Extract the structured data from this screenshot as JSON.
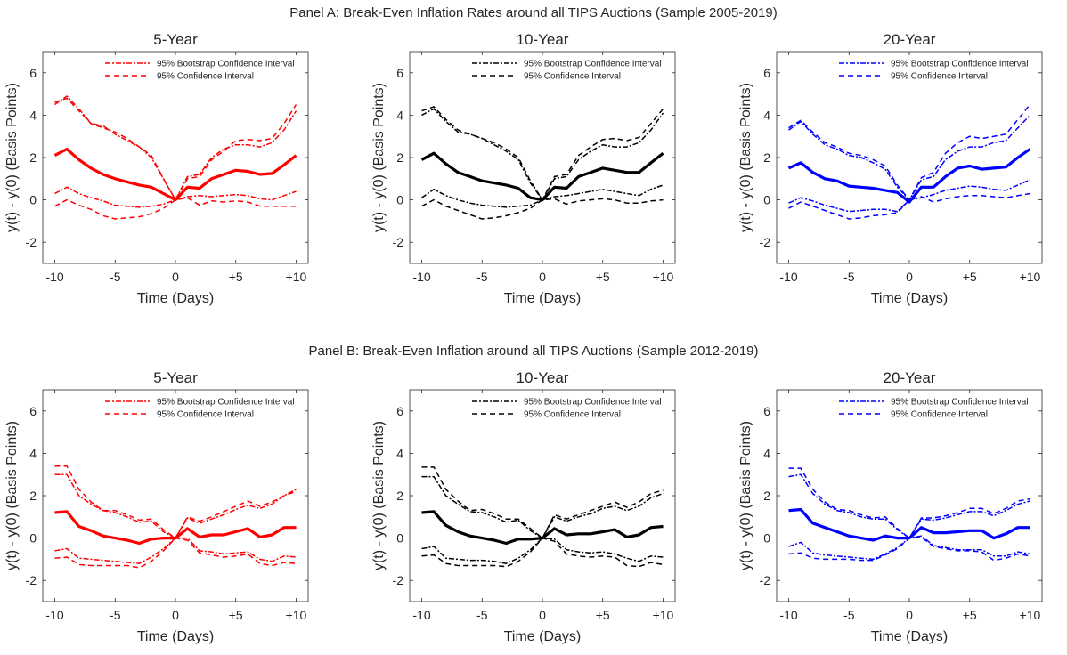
{
  "panel_a": {
    "title": "Panel A: Break-Even Inflation Rates around all TIPS Auctions (Sample 2005-2019)"
  },
  "panel_b": {
    "title": "Panel B: Break-Even Inflation around all TIPS Auctions (Sample 2012-2019)"
  },
  "chart_data": [
    {
      "type": "line",
      "panel": "A",
      "title": "5-Year",
      "color": "#ff0000",
      "xlabel": "Time (Days)",
      "ylabel": "y(t) - y(0) (Basis Points)",
      "xlim": [
        -11,
        11
      ],
      "ylim": [
        -3,
        7
      ],
      "xticks": [
        "-10",
        "-5",
        "0",
        "+5",
        "+10"
      ],
      "yticks": [
        "-2",
        "0",
        "2",
        "4",
        "6"
      ],
      "grid": false,
      "legend": "top-right",
      "x": [
        -10,
        -9,
        -8,
        -7,
        -6,
        -5,
        -4,
        -3,
        -2,
        -1,
        0,
        1,
        2,
        3,
        4,
        5,
        6,
        7,
        8,
        9,
        10
      ],
      "series": [
        {
          "role": "mean",
          "values": [
            2.1,
            2.4,
            1.9,
            1.5,
            1.2,
            1.0,
            0.85,
            0.7,
            0.6,
            0.3,
            0.0,
            0.6,
            0.55,
            1.0,
            1.2,
            1.4,
            1.35,
            1.2,
            1.25,
            1.65,
            2.1
          ]
        },
        {
          "role": "bootstrap",
          "name": "95% Bootstrap Confidence Interval",
          "values": [
            4.5,
            4.9,
            4.3,
            3.6,
            3.5,
            3.1,
            2.8,
            2.5,
            2.0,
            1.0,
            0.0,
            1.1,
            1.2,
            2.0,
            2.4,
            2.6,
            2.6,
            2.5,
            2.7,
            3.3,
            4.2
          ]
        },
        {
          "role": "bootstrap",
          "values": [
            0.3,
            0.6,
            0.3,
            0.1,
            -0.05,
            -0.25,
            -0.3,
            -0.35,
            -0.3,
            -0.2,
            0.0,
            0.15,
            0.2,
            0.15,
            0.2,
            0.25,
            0.2,
            0.05,
            0.0,
            0.2,
            0.4
          ]
        },
        {
          "role": "ci",
          "name": "95% Confidence Interval",
          "values": [
            4.6,
            4.8,
            4.2,
            3.6,
            3.4,
            3.2,
            2.9,
            2.5,
            2.1,
            1.0,
            0.0,
            1.0,
            1.1,
            1.9,
            2.3,
            2.8,
            2.85,
            2.8,
            2.9,
            3.6,
            4.5
          ]
        },
        {
          "role": "ci",
          "values": [
            -0.3,
            0.0,
            -0.25,
            -0.45,
            -0.75,
            -0.9,
            -0.85,
            -0.8,
            -0.65,
            -0.4,
            0.0,
            0.1,
            -0.25,
            -0.05,
            -0.1,
            -0.05,
            -0.1,
            -0.3,
            -0.3,
            -0.3,
            -0.3
          ]
        }
      ]
    },
    {
      "type": "line",
      "panel": "A",
      "title": "10-Year",
      "color": "#000000",
      "xlabel": "Time (Days)",
      "ylabel": "y(t) - y(0) (Basis Points)",
      "xlim": [
        -11,
        11
      ],
      "ylim": [
        -3,
        7
      ],
      "xticks": [
        "-10",
        "-5",
        "0",
        "+5",
        "+10"
      ],
      "yticks": [
        "-2",
        "0",
        "2",
        "4",
        "6"
      ],
      "grid": false,
      "legend": "top-right",
      "x": [
        -10,
        -9,
        -8,
        -7,
        -6,
        -5,
        -4,
        -3,
        -2,
        -1,
        0,
        1,
        2,
        3,
        4,
        5,
        6,
        7,
        8,
        9,
        10
      ],
      "series": [
        {
          "role": "mean",
          "values": [
            1.9,
            2.2,
            1.7,
            1.3,
            1.1,
            0.9,
            0.8,
            0.7,
            0.55,
            0.1,
            0.0,
            0.6,
            0.55,
            1.1,
            1.3,
            1.5,
            1.4,
            1.3,
            1.3,
            1.75,
            2.2
          ]
        },
        {
          "role": "bootstrap",
          "name": "95% Bootstrap Confidence Interval",
          "values": [
            4.0,
            4.3,
            3.7,
            3.2,
            3.1,
            2.9,
            2.6,
            2.3,
            1.9,
            0.8,
            0.0,
            1.0,
            1.1,
            1.9,
            2.3,
            2.6,
            2.5,
            2.5,
            2.7,
            3.3,
            4.1
          ]
        },
        {
          "role": "bootstrap",
          "values": [
            0.1,
            0.5,
            0.2,
            0.0,
            -0.15,
            -0.25,
            -0.3,
            -0.35,
            -0.3,
            -0.25,
            0.0,
            0.15,
            0.2,
            0.3,
            0.4,
            0.5,
            0.4,
            0.3,
            0.2,
            0.5,
            0.7
          ]
        },
        {
          "role": "ci",
          "name": "95% Confidence Interval",
          "values": [
            4.2,
            4.4,
            3.8,
            3.3,
            3.1,
            2.9,
            2.7,
            2.4,
            2.0,
            0.9,
            0.0,
            1.1,
            1.2,
            2.1,
            2.5,
            2.85,
            2.9,
            2.8,
            2.95,
            3.6,
            4.3
          ]
        },
        {
          "role": "ci",
          "values": [
            -0.3,
            0.0,
            -0.3,
            -0.5,
            -0.7,
            -0.9,
            -0.85,
            -0.75,
            -0.6,
            -0.4,
            0.0,
            0.05,
            -0.2,
            -0.05,
            0.0,
            0.05,
            0.0,
            -0.15,
            -0.15,
            -0.05,
            0.0
          ]
        }
      ]
    },
    {
      "type": "line",
      "panel": "A",
      "title": "20-Year",
      "color": "#0000ff",
      "xlabel": "Time (Days)",
      "ylabel": "y(t) - y(0) (Basis Points)",
      "xlim": [
        -11,
        11
      ],
      "ylim": [
        -3,
        7
      ],
      "xticks": [
        "-10",
        "-5",
        "0",
        "+5",
        "+10"
      ],
      "yticks": [
        "-2",
        "0",
        "2",
        "4",
        "6"
      ],
      "grid": false,
      "legend": "top-right",
      "x": [
        -10,
        -9,
        -8,
        -7,
        -6,
        -5,
        -4,
        -3,
        -2,
        -1,
        0,
        1,
        2,
        3,
        4,
        5,
        6,
        7,
        8,
        9,
        10
      ],
      "series": [
        {
          "role": "mean",
          "values": [
            1.5,
            1.75,
            1.3,
            1.0,
            0.9,
            0.65,
            0.6,
            0.55,
            0.45,
            0.35,
            -0.1,
            0.6,
            0.6,
            1.1,
            1.5,
            1.6,
            1.45,
            1.5,
            1.55,
            2.0,
            2.4
          ]
        },
        {
          "role": "bootstrap",
          "name": "95% Bootstrap Confidence Interval",
          "values": [
            3.3,
            3.7,
            3.1,
            2.6,
            2.4,
            2.1,
            2.0,
            1.75,
            1.45,
            0.6,
            0.0,
            0.95,
            1.1,
            1.9,
            2.3,
            2.5,
            2.5,
            2.7,
            2.8,
            3.4,
            4.0
          ]
        },
        {
          "role": "bootstrap",
          "values": [
            -0.15,
            0.1,
            -0.05,
            -0.25,
            -0.4,
            -0.55,
            -0.5,
            -0.45,
            -0.45,
            -0.55,
            0.0,
            0.1,
            0.25,
            0.45,
            0.55,
            0.65,
            0.6,
            0.5,
            0.45,
            0.7,
            0.95
          ]
        },
        {
          "role": "ci",
          "name": "95% Confidence Interval",
          "values": [
            3.4,
            3.75,
            3.2,
            2.7,
            2.5,
            2.2,
            2.1,
            1.9,
            1.6,
            0.7,
            0.0,
            1.05,
            1.3,
            2.2,
            2.7,
            3.0,
            2.9,
            3.0,
            3.1,
            3.8,
            4.5
          ]
        },
        {
          "role": "ci",
          "values": [
            -0.4,
            -0.1,
            -0.3,
            -0.5,
            -0.7,
            -0.9,
            -0.85,
            -0.75,
            -0.7,
            -0.6,
            0.0,
            0.15,
            -0.1,
            0.05,
            0.15,
            0.2,
            0.2,
            0.15,
            0.1,
            0.2,
            0.3
          ]
        }
      ]
    },
    {
      "type": "line",
      "panel": "B",
      "title": "5-Year",
      "color": "#ff0000",
      "xlabel": "Time (Days)",
      "ylabel": "y(t) - y(0) (Basis Points)",
      "xlim": [
        -11,
        11
      ],
      "ylim": [
        -3,
        7
      ],
      "xticks": [
        "-10",
        "-5",
        "0",
        "+5",
        "+10"
      ],
      "yticks": [
        "-2",
        "0",
        "2",
        "4",
        "6"
      ],
      "grid": false,
      "legend": "top-right",
      "x": [
        -10,
        -9,
        -8,
        -7,
        -6,
        -5,
        -4,
        -3,
        -2,
        -1,
        0,
        1,
        2,
        3,
        4,
        5,
        6,
        7,
        8,
        9,
        10
      ],
      "series": [
        {
          "role": "mean",
          "values": [
            1.2,
            1.25,
            0.55,
            0.35,
            0.1,
            0.0,
            -0.1,
            -0.25,
            -0.05,
            0.0,
            0.0,
            0.45,
            0.05,
            0.15,
            0.15,
            0.3,
            0.45,
            0.05,
            0.15,
            0.5,
            0.5
          ]
        },
        {
          "role": "bootstrap",
          "name": "95% Bootstrap Confidence Interval",
          "values": [
            3.0,
            3.0,
            2.0,
            1.6,
            1.3,
            1.2,
            1.0,
            0.75,
            0.8,
            0.3,
            0.0,
            0.95,
            0.7,
            0.9,
            1.1,
            1.35,
            1.55,
            1.4,
            1.6,
            2.0,
            2.3
          ]
        },
        {
          "role": "bootstrap",
          "values": [
            -0.6,
            -0.5,
            -0.95,
            -1.0,
            -1.05,
            -1.1,
            -1.15,
            -1.2,
            -0.9,
            -0.5,
            0.0,
            0.0,
            -0.6,
            -0.65,
            -0.75,
            -0.7,
            -0.65,
            -1.0,
            -1.1,
            -0.85,
            -0.9
          ]
        },
        {
          "role": "ci",
          "name": "95% Confidence Interval",
          "values": [
            3.4,
            3.4,
            2.3,
            1.7,
            1.3,
            1.3,
            1.1,
            0.85,
            0.9,
            0.4,
            0.0,
            1.0,
            0.8,
            1.0,
            1.25,
            1.5,
            1.75,
            1.5,
            1.7,
            2.0,
            2.2
          ]
        },
        {
          "role": "ci",
          "values": [
            -0.95,
            -0.9,
            -1.25,
            -1.3,
            -1.3,
            -1.3,
            -1.3,
            -1.4,
            -1.1,
            -0.6,
            0.0,
            -0.1,
            -0.7,
            -0.8,
            -0.9,
            -0.85,
            -0.75,
            -1.2,
            -1.3,
            -1.15,
            -1.2
          ]
        }
      ]
    },
    {
      "type": "line",
      "panel": "B",
      "title": "10-Year",
      "color": "#000000",
      "xlabel": "Time (Days)",
      "ylabel": "y(t) - y(0) (Basis Points)",
      "xlim": [
        -11,
        11
      ],
      "ylim": [
        -3,
        7
      ],
      "xticks": [
        "-10",
        "-5",
        "0",
        "+5",
        "+10"
      ],
      "yticks": [
        "-2",
        "0",
        "2",
        "4",
        "6"
      ],
      "grid": false,
      "legend": "top-right",
      "x": [
        -10,
        -9,
        -8,
        -7,
        -6,
        -5,
        -4,
        -3,
        -2,
        -1,
        0,
        1,
        2,
        3,
        4,
        5,
        6,
        7,
        8,
        9,
        10
      ],
      "series": [
        {
          "role": "mean",
          "values": [
            1.2,
            1.25,
            0.6,
            0.3,
            0.1,
            0.0,
            -0.1,
            -0.25,
            -0.05,
            -0.05,
            0.0,
            0.45,
            0.15,
            0.2,
            0.2,
            0.3,
            0.4,
            0.05,
            0.15,
            0.5,
            0.55
          ]
        },
        {
          "role": "bootstrap",
          "name": "95% Bootstrap Confidence Interval",
          "values": [
            2.9,
            2.9,
            2.0,
            1.6,
            1.25,
            1.2,
            1.0,
            0.75,
            0.85,
            0.35,
            0.0,
            1.0,
            0.8,
            1.0,
            1.15,
            1.4,
            1.5,
            1.3,
            1.5,
            1.9,
            2.1
          ]
        },
        {
          "role": "bootstrap",
          "values": [
            -0.5,
            -0.4,
            -0.95,
            -1.0,
            -1.05,
            -1.05,
            -1.1,
            -1.2,
            -0.95,
            -0.55,
            0.0,
            -0.05,
            -0.55,
            -0.65,
            -0.7,
            -0.65,
            -0.75,
            -0.95,
            -1.1,
            -0.85,
            -0.9
          ]
        },
        {
          "role": "ci",
          "name": "95% Confidence Interval",
          "values": [
            3.35,
            3.35,
            2.3,
            1.75,
            1.3,
            1.35,
            1.15,
            0.9,
            0.9,
            0.45,
            0.0,
            1.1,
            0.9,
            1.1,
            1.3,
            1.5,
            1.7,
            1.45,
            1.7,
            2.1,
            2.25
          ]
        },
        {
          "role": "ci",
          "values": [
            -0.85,
            -0.8,
            -1.2,
            -1.3,
            -1.3,
            -1.3,
            -1.3,
            -1.35,
            -1.1,
            -0.65,
            0.0,
            -0.15,
            -0.75,
            -0.85,
            -0.9,
            -0.85,
            -0.9,
            -1.3,
            -1.35,
            -1.15,
            -1.25
          ]
        }
      ]
    },
    {
      "type": "line",
      "panel": "B",
      "title": "20-Year",
      "color": "#0000ff",
      "xlabel": "Time (Days)",
      "ylabel": "y(t) - y(0) (Basis Points)",
      "xlim": [
        -11,
        11
      ],
      "ylim": [
        -3,
        7
      ],
      "xticks": [
        "-10",
        "-5",
        "0",
        "+5",
        "+10"
      ],
      "yticks": [
        "-2",
        "0",
        "2",
        "4",
        "6"
      ],
      "grid": false,
      "legend": "top-right",
      "x": [
        -10,
        -9,
        -8,
        -7,
        -6,
        -5,
        -4,
        -3,
        -2,
        -1,
        0,
        1,
        2,
        3,
        4,
        5,
        6,
        7,
        8,
        9,
        10
      ],
      "series": [
        {
          "role": "mean",
          "values": [
            1.3,
            1.35,
            0.7,
            0.5,
            0.3,
            0.1,
            0.0,
            -0.1,
            0.1,
            0.0,
            0.0,
            0.5,
            0.25,
            0.25,
            0.3,
            0.35,
            0.35,
            0.0,
            0.2,
            0.5,
            0.5
          ]
        },
        {
          "role": "bootstrap",
          "name": "95% Bootstrap Confidence Interval",
          "values": [
            2.9,
            3.0,
            2.1,
            1.6,
            1.3,
            1.2,
            1.0,
            0.9,
            0.9,
            0.4,
            0.0,
            0.9,
            0.85,
            0.95,
            1.1,
            1.25,
            1.25,
            1.05,
            1.3,
            1.6,
            1.75
          ]
        },
        {
          "role": "bootstrap",
          "values": [
            -0.4,
            -0.2,
            -0.7,
            -0.8,
            -0.85,
            -0.9,
            -0.95,
            -1.0,
            -0.75,
            -0.45,
            0.0,
            0.1,
            -0.35,
            -0.45,
            -0.55,
            -0.55,
            -0.55,
            -0.85,
            -0.85,
            -0.65,
            -0.75
          ]
        },
        {
          "role": "ci",
          "name": "95% Confidence Interval",
          "values": [
            3.3,
            3.3,
            2.3,
            1.7,
            1.35,
            1.3,
            1.1,
            0.95,
            1.0,
            0.45,
            0.0,
            0.95,
            0.95,
            1.05,
            1.2,
            1.4,
            1.4,
            1.15,
            1.4,
            1.75,
            1.85
          ]
        },
        {
          "role": "ci",
          "values": [
            -0.75,
            -0.7,
            -0.95,
            -1.0,
            -1.0,
            -1.0,
            -1.05,
            -1.05,
            -0.8,
            -0.5,
            0.0,
            0.05,
            -0.4,
            -0.5,
            -0.6,
            -0.6,
            -0.65,
            -1.05,
            -0.95,
            -0.75,
            -0.85
          ]
        }
      ]
    }
  ]
}
